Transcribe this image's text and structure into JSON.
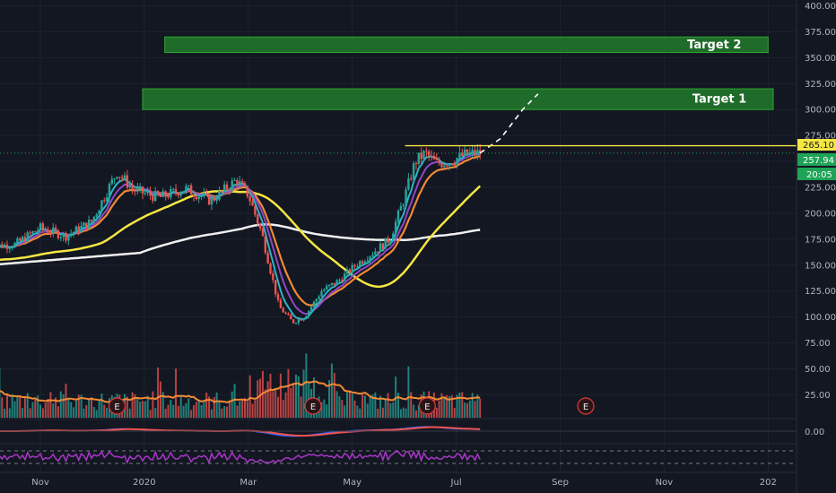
{
  "chart_data": {
    "type": "candlestick",
    "title": "",
    "price_axis": {
      "ylim": [
        0,
        400
      ],
      "ticks": [
        "400.00",
        "375.00",
        "350.00",
        "325.00",
        "300.00",
        "275.00",
        "250.00",
        "225.00",
        "200.00",
        "175.00",
        "150.00",
        "125.00",
        "100.00",
        "75.00",
        "50.00",
        "25.00"
      ],
      "tick_values": [
        400,
        375,
        350,
        325,
        300,
        275,
        250,
        225,
        200,
        175,
        150,
        125,
        100,
        75,
        50,
        25
      ],
      "macd_tick": "0.00"
    },
    "time_axis": {
      "labels": [
        "Nov",
        "2020",
        "Mar",
        "May",
        "Jul",
        "Sep",
        "Nov",
        "202"
      ],
      "label_days": [
        30,
        91,
        152,
        213,
        274,
        335,
        396,
        457
      ],
      "xlim": [
        0,
        470
      ]
    },
    "targets": [
      {
        "label": "Target 1",
        "from": 300,
        "to": 320,
        "x_from": 90,
        "x_to": 460
      },
      {
        "label": "Target 2",
        "from": 355,
        "to": 370,
        "x_from": 103,
        "x_to": 457
      }
    ],
    "price_labels": {
      "resistance": "265.10",
      "resistance_value": 265.1,
      "last_price": "257.94",
      "last_value": 257.94,
      "countdown": "20:05"
    },
    "earnings_markers": [
      {
        "label": "E",
        "day": 75
      },
      {
        "label": "E",
        "day": 190
      },
      {
        "label": "E",
        "day": 257
      },
      {
        "label": "E",
        "day": 350
      }
    ],
    "price_anchors": [
      [
        0,
        168
      ],
      [
        15,
        170
      ],
      [
        30,
        186
      ],
      [
        45,
        178
      ],
      [
        60,
        192
      ],
      [
        75,
        240
      ],
      [
        85,
        222
      ],
      [
        100,
        215
      ],
      [
        115,
        224
      ],
      [
        130,
        212
      ],
      [
        145,
        232
      ],
      [
        152,
        218
      ],
      [
        160,
        180
      ],
      [
        170,
        110
      ],
      [
        178,
        95
      ],
      [
        185,
        100
      ],
      [
        195,
        125
      ],
      [
        205,
        135
      ],
      [
        215,
        150
      ],
      [
        225,
        162
      ],
      [
        235,
        175
      ],
      [
        243,
        212
      ],
      [
        250,
        250
      ],
      [
        256,
        258
      ],
      [
        262,
        248
      ],
      [
        270,
        250
      ],
      [
        280,
        257
      ],
      [
        288,
        258
      ]
    ],
    "projection": [
      [
        288,
        258
      ],
      [
        300,
        272
      ],
      [
        313,
        300
      ],
      [
        322,
        315
      ]
    ],
    "resistance_line_days": [
      244,
      470
    ],
    "ma_colors": {
      "ema_fast": "#2bb5c8",
      "ema_mid": "#9147c7",
      "ma_orange": "#f08a34",
      "ma_yellow": "#f5e642",
      "ma_white": "#f0f0f0"
    },
    "colors": {
      "up": "#26a69a",
      "down": "#ef5350",
      "target_fill": "#1f6b2a",
      "target_border": "#2ea82f",
      "resistance": "#f5e642",
      "last_price_bg": "#1fa357",
      "rsi": "#a836c6"
    }
  }
}
